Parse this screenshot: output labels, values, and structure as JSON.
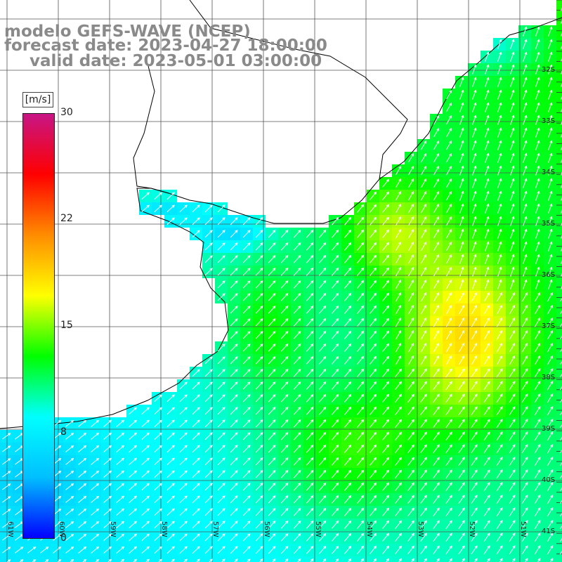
{
  "title": {
    "line1": "modelo GEFS-WAVE (NCEP)",
    "line2": "forecast date: 2023-04-27 18:00:00",
    "line3": "valid date: 2023-05-01 03:00:00"
  },
  "colorbar": {
    "unit": "[m/s]",
    "min": 0,
    "max": 30,
    "ticks": [
      "30",
      "22",
      "15",
      "8",
      "0"
    ],
    "tick_values": [
      30,
      22,
      15,
      8,
      0
    ],
    "stops": [
      "#0000ff",
      "#00bfff",
      "#00ffff",
      "#00ff00",
      "#ffff00",
      "#ff8c00",
      "#ff0000",
      "#c71585"
    ]
  },
  "map": {
    "variable": "wind speed",
    "lon_range": [
      -61,
      -50
    ],
    "lat_range": [
      -41,
      -30
    ],
    "lat_labels": [
      "32S",
      "33S",
      "34S",
      "35S",
      "36S",
      "37S",
      "38S",
      "39S",
      "40S",
      "41S"
    ],
    "lon_labels": [
      "61W",
      "60W",
      "59W",
      "58W",
      "57W",
      "56W",
      "55W",
      "54W",
      "53W",
      "52W",
      "51W"
    ],
    "arrow_color": "#ffffff",
    "coast_color": "#000000",
    "grid_color": "#555555"
  }
}
